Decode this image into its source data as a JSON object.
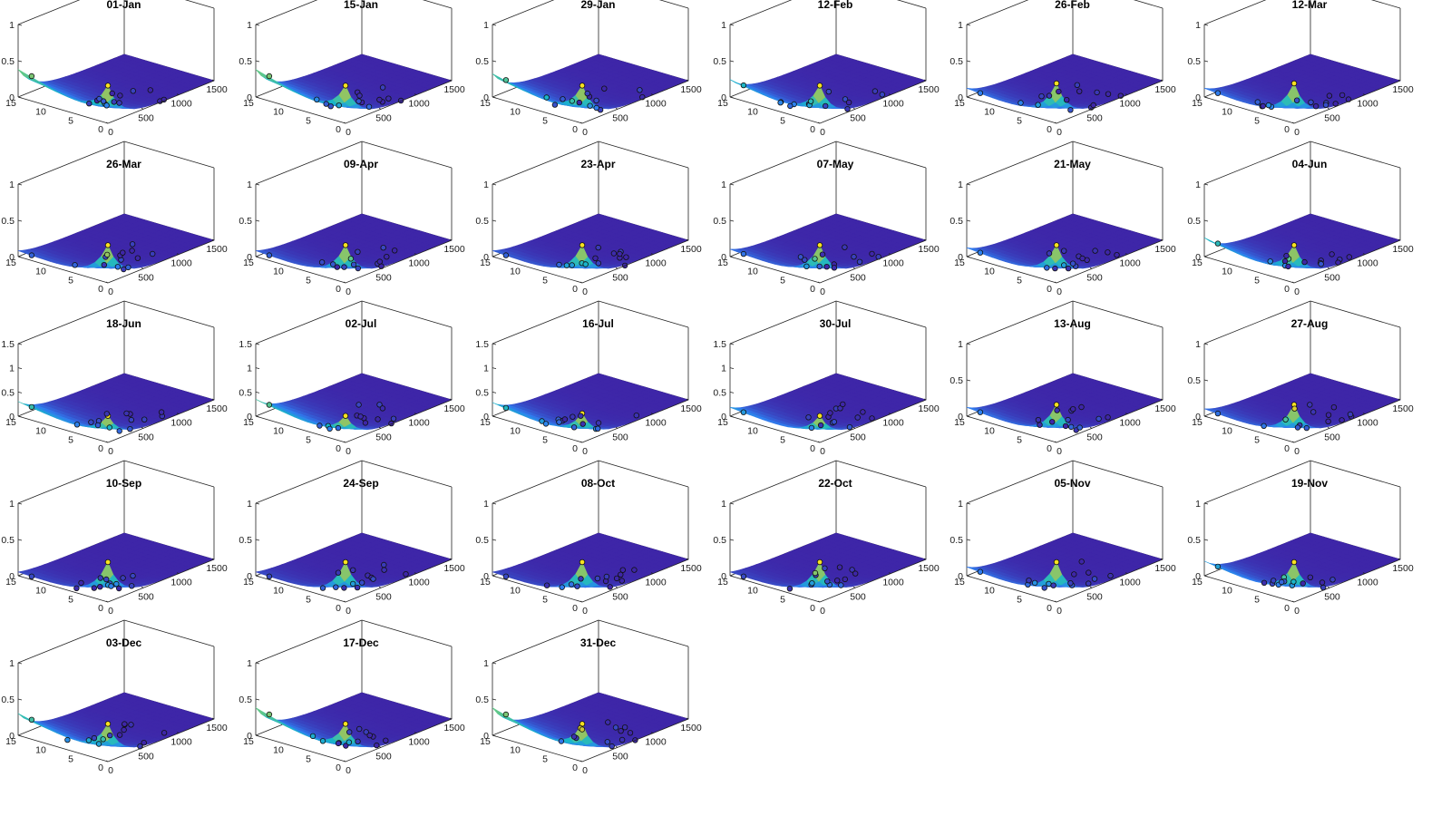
{
  "chart_data": {
    "type": "surface3d",
    "rows": 5,
    "cols": 6,
    "x_ticks": [
      0,
      500,
      1000,
      1500
    ],
    "y_ticks": [
      0,
      5,
      10,
      15
    ],
    "xlim": [
      0,
      1500
    ],
    "ylim": [
      0,
      15
    ],
    "colormap": [
      "#3e26a8",
      "#2f7ff0",
      "#19b5c9",
      "#5fc88b",
      "#c4c03b",
      "#f9e021"
    ],
    "panels": [
      {
        "title": "01-Jan",
        "zlim": [
          0,
          1
        ],
        "z_ticks": [
          "0",
          "0.5",
          "1"
        ],
        "peak": 0.52,
        "corner": 0.38
      },
      {
        "title": "15-Jan",
        "zlim": [
          0,
          1
        ],
        "z_ticks": [
          "0",
          "0.5",
          "1"
        ],
        "peak": 0.52,
        "corner": 0.38
      },
      {
        "title": "29-Jan",
        "zlim": [
          0,
          1
        ],
        "z_ticks": [
          "0",
          "0.5",
          "1"
        ],
        "peak": 0.52,
        "corner": 0.32
      },
      {
        "title": "12-Feb",
        "zlim": [
          0,
          1
        ],
        "z_ticks": [
          "0",
          "0.5",
          "1"
        ],
        "peak": 0.52,
        "corner": 0.24
      },
      {
        "title": "26-Feb",
        "zlim": [
          0,
          1
        ],
        "z_ticks": [
          "0",
          "0.5",
          "1"
        ],
        "peak": 0.55,
        "corner": 0.12
      },
      {
        "title": "12-Mar",
        "zlim": [
          0,
          1
        ],
        "z_ticks": [
          "0",
          "0.5",
          "1"
        ],
        "peak": 0.55,
        "corner": 0.12
      },
      {
        "title": "26-Mar",
        "zlim": [
          0,
          1
        ],
        "z_ticks": [
          "0",
          "0.5",
          "1"
        ],
        "peak": 0.52,
        "corner": 0.08
      },
      {
        "title": "09-Apr",
        "zlim": [
          0,
          1
        ],
        "z_ticks": [
          "0",
          "0.5",
          "1"
        ],
        "peak": 0.52,
        "corner": 0.08
      },
      {
        "title": "23-Apr",
        "zlim": [
          0,
          1
        ],
        "z_ticks": [
          "0",
          "0.5",
          "1"
        ],
        "peak": 0.52,
        "corner": 0.08
      },
      {
        "title": "07-May",
        "zlim": [
          0,
          1
        ],
        "z_ticks": [
          "0",
          "0.5",
          "1"
        ],
        "peak": 0.52,
        "corner": 0.1
      },
      {
        "title": "21-May",
        "zlim": [
          0,
          1
        ],
        "z_ticks": [
          "0",
          "0.5",
          "1"
        ],
        "peak": 0.52,
        "corner": 0.12
      },
      {
        "title": "04-Jun",
        "zlim": [
          0,
          1
        ],
        "z_ticks": [
          "0",
          "0.5",
          "1"
        ],
        "peak": 0.52,
        "corner": 0.26
      },
      {
        "title": "18-Jun",
        "zlim": [
          0,
          1.5
        ],
        "z_ticks": [
          "0",
          "0.5",
          "1",
          "1.5"
        ],
        "peak": 0.55,
        "corner": 0.3
      },
      {
        "title": "02-Jul",
        "zlim": [
          0,
          1.5
        ],
        "z_ticks": [
          "0",
          "0.5",
          "1",
          "1.5"
        ],
        "peak": 0.55,
        "corner": 0.35
      },
      {
        "title": "16-Jul",
        "zlim": [
          0,
          1.5
        ],
        "z_ticks": [
          "0",
          "0.5",
          "1",
          "1.5"
        ],
        "peak": 0.6,
        "corner": 0.28
      },
      {
        "title": "30-Jul",
        "zlim": [
          0,
          1.5
        ],
        "z_ticks": [
          "0",
          "0.5",
          "1",
          "1.5"
        ],
        "peak": 0.55,
        "corner": 0.18
      },
      {
        "title": "13-Aug",
        "zlim": [
          0,
          1
        ],
        "z_ticks": [
          "0",
          "0.5",
          "1"
        ],
        "peak": 0.52,
        "corner": 0.12
      },
      {
        "title": "27-Aug",
        "zlim": [
          0,
          1
        ],
        "z_ticks": [
          "0",
          "0.5",
          "1"
        ],
        "peak": 0.52,
        "corner": 0.1
      },
      {
        "title": "10-Sep",
        "zlim": [
          0,
          1
        ],
        "z_ticks": [
          "0",
          "0.5",
          "1"
        ],
        "peak": 0.55,
        "corner": 0.05
      },
      {
        "title": "24-Sep",
        "zlim": [
          0,
          1
        ],
        "z_ticks": [
          "0",
          "0.5",
          "1"
        ],
        "peak": 0.55,
        "corner": 0.05
      },
      {
        "title": "08-Oct",
        "zlim": [
          0,
          1
        ],
        "z_ticks": [
          "0",
          "0.5",
          "1"
        ],
        "peak": 0.55,
        "corner": 0.05
      },
      {
        "title": "22-Oct",
        "zlim": [
          0,
          1
        ],
        "z_ticks": [
          "0",
          "0.5",
          "1"
        ],
        "peak": 0.55,
        "corner": 0.05
      },
      {
        "title": "05-Nov",
        "zlim": [
          0,
          1
        ],
        "z_ticks": [
          "0",
          "0.5",
          "1"
        ],
        "peak": 0.55,
        "corner": 0.12
      },
      {
        "title": "19-Nov",
        "zlim": [
          0,
          1
        ],
        "z_ticks": [
          "0",
          "0.5",
          "1"
        ],
        "peak": 0.55,
        "corner": 0.2
      },
      {
        "title": "03-Dec",
        "zlim": [
          0,
          1
        ],
        "z_ticks": [
          "0",
          "0.5",
          "1"
        ],
        "peak": 0.52,
        "corner": 0.3
      },
      {
        "title": "17-Dec",
        "zlim": [
          0,
          1
        ],
        "z_ticks": [
          "0",
          "0.5",
          "1"
        ],
        "peak": 0.52,
        "corner": 0.38
      },
      {
        "title": "31-Dec",
        "zlim": [
          0,
          1
        ],
        "z_ticks": [
          "0",
          "0.5",
          "1"
        ],
        "peak": 0.52,
        "corner": 0.38
      }
    ]
  }
}
